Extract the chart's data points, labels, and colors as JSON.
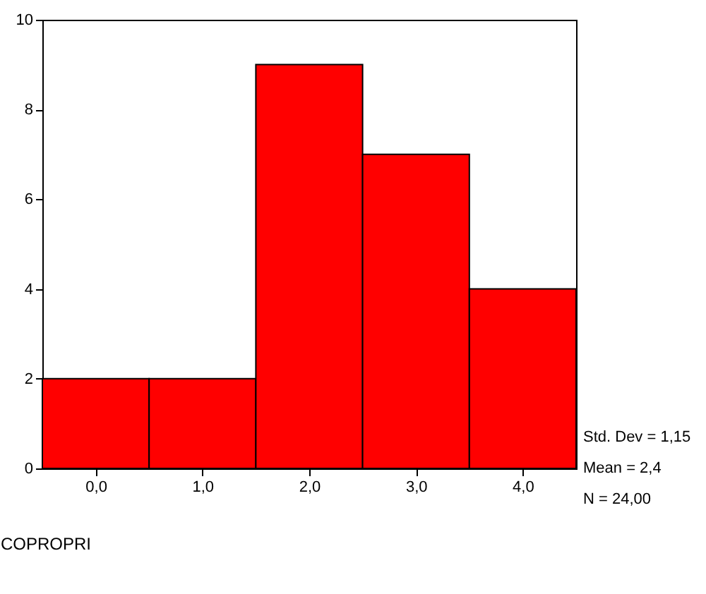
{
  "chart_data": {
    "type": "histogram",
    "xlabel": "COPROPRI",
    "bins": [
      -0.5,
      0.5,
      1.5,
      2.5,
      3.5,
      4.5
    ],
    "values": [
      2,
      2,
      9,
      7,
      4
    ],
    "color": "#ff0000",
    "xlim": [
      -0.5,
      4.5
    ],
    "xticks": [
      {
        "value": 0,
        "label": "0,0"
      },
      {
        "value": 1,
        "label": "1,0"
      },
      {
        "value": 2,
        "label": "2,0"
      },
      {
        "value": 3,
        "label": "3,0"
      },
      {
        "value": 4,
        "label": "4,0"
      }
    ],
    "ylim": [
      0,
      10
    ],
    "yticks": [
      0,
      2,
      4,
      6,
      8,
      10
    ],
    "grid": false,
    "annotations": [
      "Std. Dev = 1,15",
      "Mean = 2,4",
      "N = 24,00"
    ]
  }
}
